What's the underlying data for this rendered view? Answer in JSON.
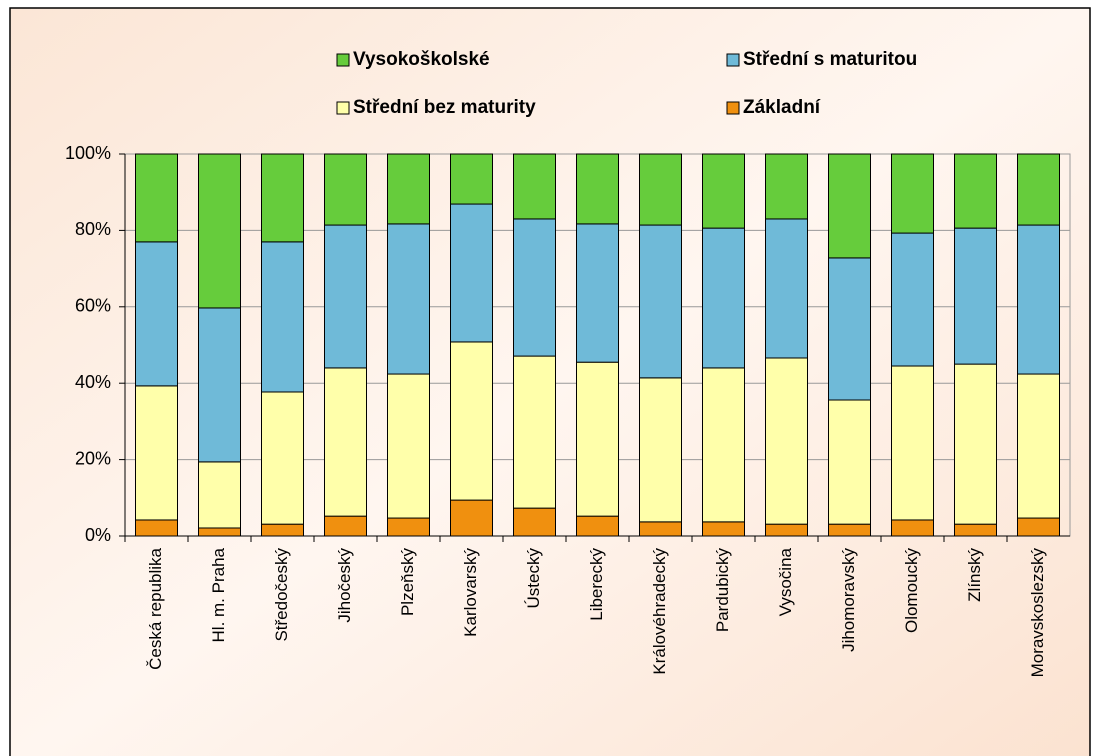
{
  "chart_data": {
    "type": "stacked_bar",
    "categories": [
      "Česká republika",
      "Hl. m. Praha",
      "Středočeský",
      "Jihočeský",
      "Plzeňský",
      "Karlovarský",
      "Ústecký",
      "Liberecký",
      "Královéhradecký",
      "Pardubický",
      "Vysočina",
      "Jihomoravský",
      "Olomoucký",
      "Zlínský",
      "Moravskoslezský"
    ],
    "series": [
      {
        "name": "Základní",
        "color": "#f0900f",
        "values": [
          4.2,
          2.1,
          3.1,
          5.2,
          4.7,
          9.4,
          7.3,
          5.2,
          3.7,
          3.7,
          3.1,
          3.1,
          4.2,
          3.1,
          4.7
        ]
      },
      {
        "name": "Střední bez maturity",
        "color": "#ffffaa",
        "values": [
          35.1,
          17.3,
          34.6,
          38.8,
          37.7,
          41.4,
          39.8,
          40.3,
          37.7,
          40.3,
          43.5,
          32.5,
          40.3,
          41.9,
          37.7
        ]
      },
      {
        "name": "Střední s maturitou",
        "color": "#6fbad8",
        "values": [
          37.7,
          40.3,
          39.3,
          37.4,
          39.3,
          36.1,
          35.9,
          36.2,
          40.0,
          36.6,
          36.4,
          37.2,
          34.8,
          35.6,
          39.0
        ]
      },
      {
        "name": "Vysokoškolské",
        "color": "#66cc3c",
        "values": [
          23.0,
          40.3,
          23.0,
          18.6,
          18.3,
          13.1,
          17.0,
          18.3,
          18.6,
          19.4,
          17.0,
          27.2,
          20.7,
          19.4,
          18.6
        ]
      }
    ],
    "ylim": [
      0,
      100
    ],
    "yticks": [
      {
        "value": 0,
        "label": "0%"
      },
      {
        "value": 20,
        "label": "20%"
      },
      {
        "value": 40,
        "label": "40%"
      },
      {
        "value": 60,
        "label": "60%"
      },
      {
        "value": 80,
        "label": "80%"
      },
      {
        "value": 100,
        "label": "100%"
      }
    ],
    "grid": true,
    "legend": "top"
  }
}
